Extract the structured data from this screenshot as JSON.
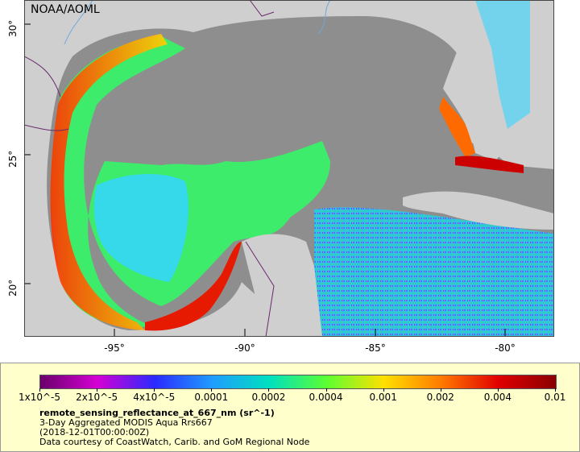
{
  "map": {
    "credit": "NOAA/AOML",
    "latitude_ticks": [
      "30°",
      "25°",
      "20°"
    ],
    "longitude_ticks": [
      "-95°",
      "-90°",
      "-85°",
      "-80°"
    ]
  },
  "legend": {
    "colorbar_ticks": [
      "1x10^-5",
      "2x10^-5",
      "4x10^-5",
      "0.0001",
      "0.0002",
      "0.0004",
      "0.001",
      "0.002",
      "0.004",
      "0.01"
    ],
    "colorbar_colors": [
      "#6a006a",
      "#d400d4",
      "#2a2aff",
      "#1f9cff",
      "#00e0c0",
      "#5cff32",
      "#ffe000",
      "#ff7a00",
      "#e00000",
      "#8a0000"
    ],
    "title": "remote_sensing_reflectance_at_667_nm (sr^-1)",
    "subtitle": "3-Day Aggregated MODIS Aqua Rrs667",
    "date": "(2018-12-01T00:00:00Z)",
    "source": "Data courtesy of CoastWatch, Carib. and GoM Regional Node"
  }
}
